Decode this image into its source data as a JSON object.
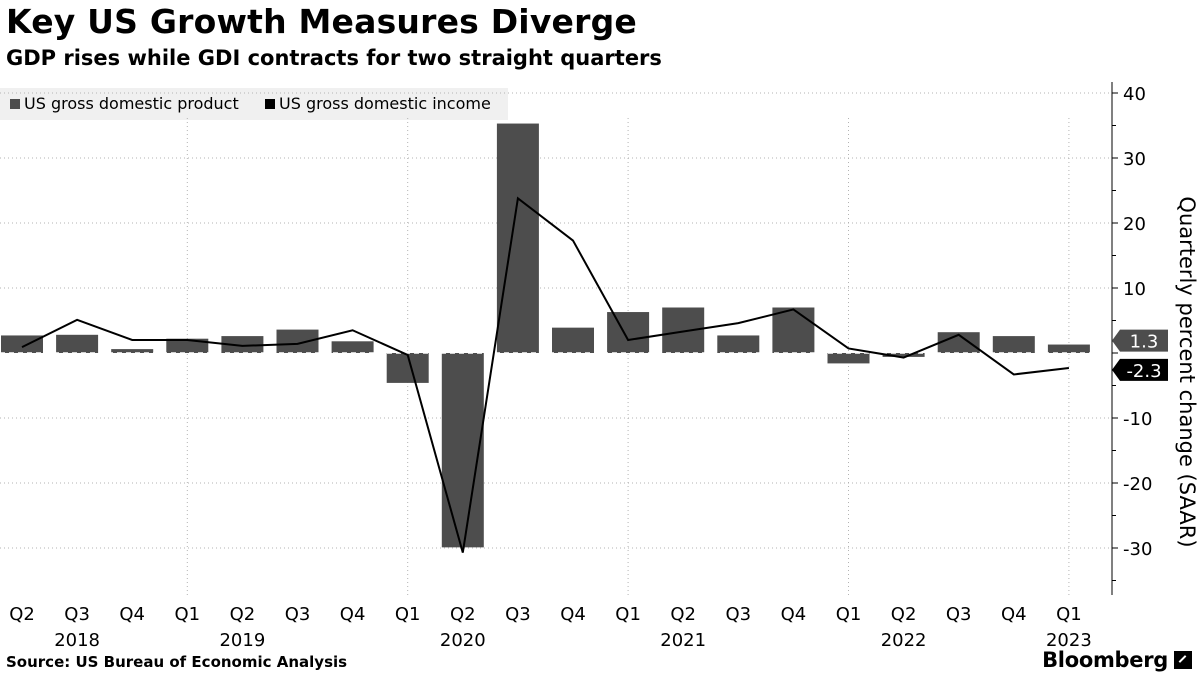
{
  "header": {
    "title": "Key US Growth Measures Diverge",
    "subtitle": "GDP rises while GDI contracts for two straight quarters"
  },
  "legend": {
    "gdp_label": "US gross domestic product",
    "gdi_label": "US gross domestic income"
  },
  "footer": {
    "source": "Source: US Bureau of Economic Analysis",
    "brand": "Bloomberg"
  },
  "colors": {
    "gdp": "#4d4d4d",
    "gdi": "#000000",
    "grid": "#b3b3b3"
  },
  "chart_data": {
    "type": "bar",
    "title": "Key US Growth Measures Diverge",
    "subtitle": "GDP rises while GDI contracts for two straight quarters",
    "ylabel": "Quarterly percent change (SAAR)",
    "ylim": [
      -37,
      41
    ],
    "yticks": [
      40,
      30,
      20,
      10,
      0,
      -10,
      -20,
      -30
    ],
    "categories": [
      "Q2",
      "Q3",
      "Q4",
      "Q1",
      "Q2",
      "Q3",
      "Q4",
      "Q1",
      "Q2",
      "Q3",
      "Q4",
      "Q1",
      "Q2",
      "Q3",
      "Q4",
      "Q1",
      "Q2",
      "Q3",
      "Q4",
      "Q1"
    ],
    "year_labels": [
      {
        "index": 1,
        "label": "2018"
      },
      {
        "index": 4,
        "label": "2019"
      },
      {
        "index": 8,
        "label": "2020"
      },
      {
        "index": 12,
        "label": "2021"
      },
      {
        "index": 16,
        "label": "2022"
      },
      {
        "index": 19,
        "label": "2023"
      }
    ],
    "series": [
      {
        "name": "US gross domestic product",
        "type": "bar",
        "values": [
          2.7,
          2.8,
          0.6,
          2.2,
          2.6,
          3.6,
          1.8,
          -4.6,
          -29.9,
          35.3,
          3.9,
          6.3,
          7.0,
          2.7,
          7.0,
          -1.6,
          -0.6,
          3.2,
          2.6,
          1.3
        ]
      },
      {
        "name": "US gross domestic income",
        "type": "line",
        "values": [
          0.9,
          5.1,
          2.0,
          2.0,
          1.1,
          1.4,
          3.5,
          -0.3,
          -30.7,
          23.8,
          17.3,
          2.0,
          3.3,
          4.6,
          6.7,
          0.7,
          -0.7,
          2.8,
          -3.3,
          -2.3
        ]
      }
    ],
    "end_labels": {
      "gdp": "1.3",
      "gdi": "-2.3"
    },
    "grid": true,
    "legend_position": "top-left"
  }
}
